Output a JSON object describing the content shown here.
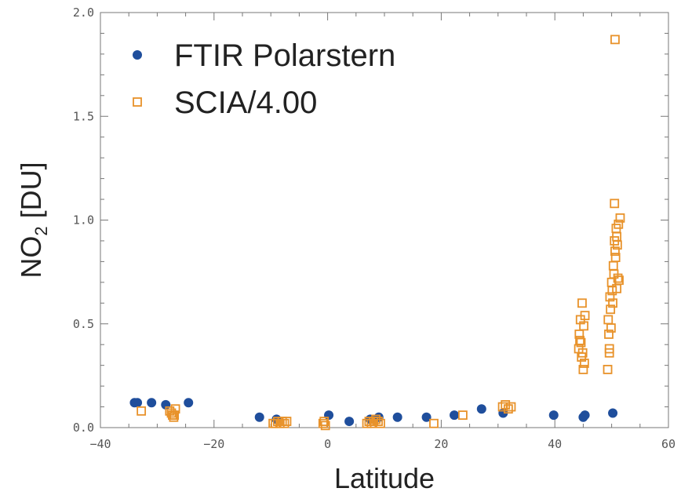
{
  "chart_data": {
    "type": "scatter",
    "xlabel": "Latitude",
    "ylabel": "NO",
    "ylabel_subscript": "2",
    "ylabel_unit": " [DU]",
    "xlim": [
      -40,
      60
    ],
    "ylim": [
      0,
      2.0
    ],
    "xticks": [
      -40,
      -20,
      0,
      20,
      40,
      60
    ],
    "xtick_labels": [
      "−40",
      "−20",
      "0",
      "20",
      "40",
      "60"
    ],
    "yticks": [
      0,
      0.5,
      1.0,
      1.5,
      2.0
    ],
    "ytick_labels": [
      "0.0",
      "0.5",
      "1.0",
      "1.5",
      "2.0"
    ],
    "legend_position": "top-left",
    "series": [
      {
        "name": "FTIR Polarstern",
        "marker": "filled-circle",
        "color": "#1f4e9c",
        "x": [
          -34.0,
          -33.5,
          -31.0,
          -28.5,
          -24.5,
          -12.0,
          -9.0,
          0.2,
          3.8,
          7.5,
          9.0,
          12.3,
          17.4,
          22.3,
          27.1,
          30.9,
          39.8,
          45.0,
          45.3,
          50.2
        ],
        "y": [
          0.12,
          0.12,
          0.12,
          0.11,
          0.12,
          0.05,
          0.04,
          0.06,
          0.03,
          0.04,
          0.05,
          0.05,
          0.05,
          0.06,
          0.09,
          0.07,
          0.06,
          0.05,
          0.06,
          0.07
        ]
      },
      {
        "name": "SCIA/4.00",
        "marker": "open-square",
        "color": "#e8922a",
        "x": [
          -32.8,
          -27.5,
          -27.3,
          -27.1,
          -27.8,
          -26.8,
          -27.0,
          -9.2,
          -8.8,
          -8.4,
          -8.0,
          -7.6,
          -7.2,
          -9.6,
          -0.8,
          -0.6,
          -0.4,
          6.9,
          7.3,
          7.7,
          8.1,
          8.5,
          8.9,
          9.3,
          18.7,
          23.8,
          30.8,
          31.3,
          31.8,
          32.3,
          44.3,
          44.6,
          44.9,
          45.2,
          44.5,
          44.8,
          45.1,
          44.2,
          44.7,
          45.0,
          44.4,
          45.3,
          49.4,
          49.7,
          50.0,
          50.3,
          50.6,
          50.9,
          51.2,
          51.5,
          49.5,
          49.8,
          50.1,
          50.4,
          50.7,
          51.0,
          51.3,
          49.6,
          49.9,
          50.2,
          50.5,
          50.8,
          51.1,
          49.3,
          49.6,
          50.9,
          50.5,
          50.6
        ],
        "y": [
          0.08,
          0.07,
          0.06,
          0.05,
          0.08,
          0.09,
          0.06,
          0.02,
          0.03,
          0.02,
          0.03,
          0.02,
          0.03,
          0.02,
          0.02,
          0.03,
          0.01,
          0.02,
          0.03,
          0.02,
          0.03,
          0.04,
          0.03,
          0.02,
          0.02,
          0.06,
          0.1,
          0.11,
          0.09,
          0.1,
          0.45,
          0.41,
          0.36,
          0.31,
          0.52,
          0.6,
          0.49,
          0.38,
          0.34,
          0.28,
          0.42,
          0.54,
          0.52,
          0.63,
          0.7,
          0.78,
          0.85,
          0.92,
          0.98,
          1.01,
          0.45,
          0.57,
          0.66,
          0.74,
          0.82,
          0.88,
          0.71,
          0.38,
          0.48,
          0.6,
          0.9,
          0.96,
          0.72,
          0.28,
          0.36,
          0.67,
          1.08,
          1.87
        ]
      }
    ]
  }
}
